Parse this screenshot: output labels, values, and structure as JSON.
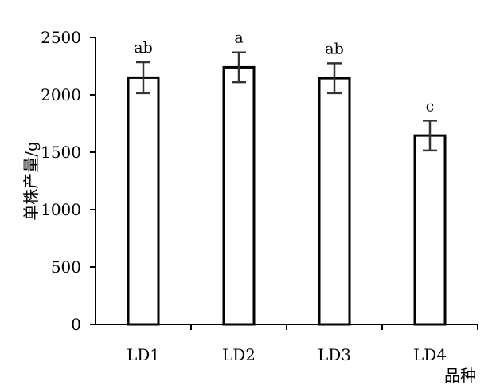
{
  "chart_data": {
    "type": "bar",
    "title": "",
    "xlabel": "品种",
    "ylabel": "单株产量/g",
    "categories": [
      "LD1",
      "LD2",
      "LD3",
      "LD4"
    ],
    "values": [
      2150,
      2240,
      2145,
      1645
    ],
    "error": [
      135,
      130,
      130,
      130
    ],
    "significance": [
      "ab",
      "a",
      "ab",
      "c"
    ],
    "ylim": [
      0,
      2500
    ],
    "yticks": [
      0,
      500,
      1000,
      1500,
      2000,
      2500
    ],
    "grid": false,
    "legend": "none",
    "colors": {
      "bar_fill": "#ffffff",
      "bar_stroke": "#000000",
      "error_bar": "#333333"
    }
  }
}
